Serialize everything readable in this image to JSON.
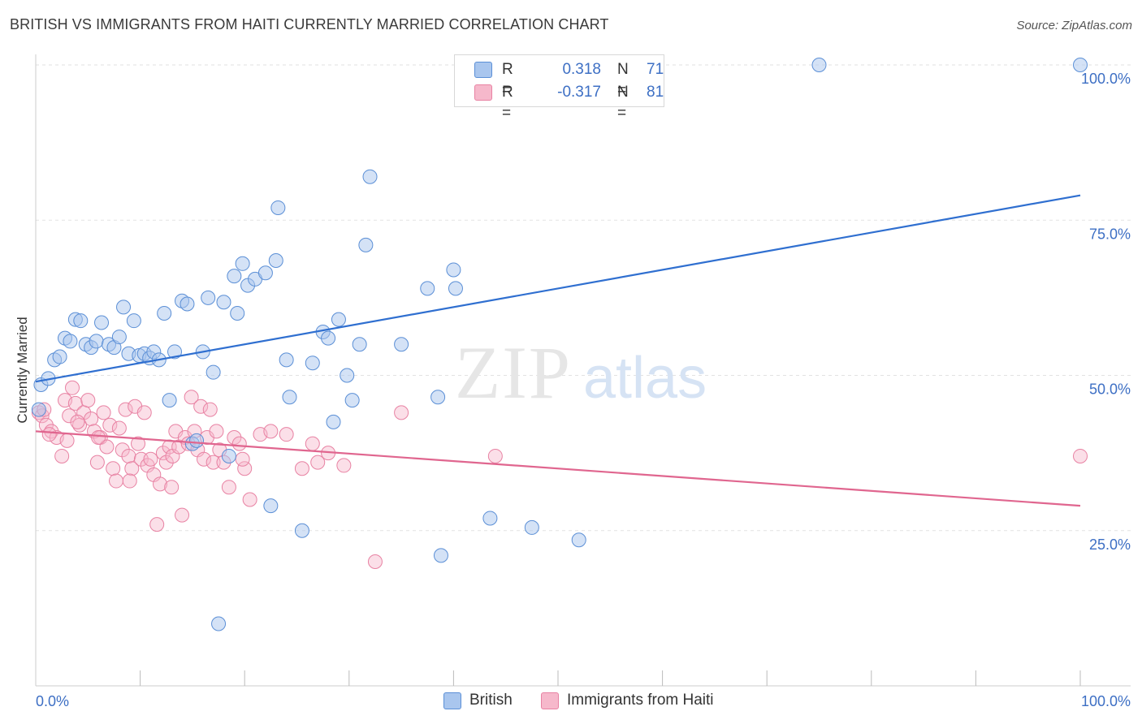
{
  "header": {
    "title": "BRITISH VS IMMIGRANTS FROM HAITI CURRENTLY MARRIED CORRELATION CHART",
    "source": "Source: ZipAtlas.com"
  },
  "colors": {
    "british_fill": "#a9c6ee",
    "british_stroke": "#5b8fd6",
    "british_line": "#2f6fd0",
    "haiti_fill": "#f6b8cb",
    "haiti_stroke": "#e882a3",
    "haiti_line": "#e0668f",
    "tick_text": "#3d6fc4",
    "grid": "#e2e2e2"
  },
  "legend": {
    "rows": [
      {
        "r_label": "R =",
        "r_value": "0.318",
        "n_label": "N =",
        "n_value": "71"
      },
      {
        "r_label": "R =",
        "r_value": "-0.317",
        "n_label": "N =",
        "n_value": "81"
      }
    ]
  },
  "bottom_legend": {
    "british": "British",
    "haiti": "Immigrants from Haiti"
  },
  "watermark": {
    "zip": "ZIP",
    "atlas": "atlas"
  },
  "chart_data": {
    "type": "scatter",
    "title": "BRITISH VS IMMIGRANTS FROM HAITI CURRENTLY MARRIED CORRELATION CHART",
    "xlabel": "",
    "ylabel": "Currently Married",
    "xlim": [
      0,
      100
    ],
    "ylim": [
      0,
      100
    ],
    "x_tick_labels": [
      "0.0%",
      "100.0%"
    ],
    "y_tick_labels": [
      "25.0%",
      "50.0%",
      "75.0%",
      "100.0%"
    ],
    "y_ticks": [
      25,
      50,
      75,
      100
    ],
    "grid": true,
    "series": [
      {
        "name": "British",
        "r": 0.318,
        "n": 71,
        "trend": {
          "x": [
            0,
            100
          ],
          "y": [
            49.0,
            79.0
          ]
        },
        "points": [
          [
            0.3,
            44.5
          ],
          [
            0.5,
            48.5
          ],
          [
            1.2,
            49.5
          ],
          [
            1.8,
            52.5
          ],
          [
            2.3,
            53.0
          ],
          [
            2.8,
            56.0
          ],
          [
            3.3,
            55.5
          ],
          [
            3.8,
            59.0
          ],
          [
            4.3,
            58.8
          ],
          [
            4.8,
            55.0
          ],
          [
            5.3,
            54.5
          ],
          [
            5.8,
            55.5
          ],
          [
            6.3,
            58.5
          ],
          [
            7.0,
            55.0
          ],
          [
            7.5,
            54.5
          ],
          [
            8.0,
            56.2
          ],
          [
            8.4,
            61.0
          ],
          [
            8.9,
            53.5
          ],
          [
            9.4,
            58.8
          ],
          [
            9.9,
            53.2
          ],
          [
            10.4,
            53.5
          ],
          [
            10.9,
            52.8
          ],
          [
            11.3,
            53.8
          ],
          [
            11.8,
            52.5
          ],
          [
            12.3,
            60.0
          ],
          [
            12.8,
            46.0
          ],
          [
            13.3,
            53.8
          ],
          [
            14.0,
            62.0
          ],
          [
            14.5,
            61.5
          ],
          [
            15.0,
            39.0
          ],
          [
            15.4,
            39.5
          ],
          [
            16.0,
            53.8
          ],
          [
            16.5,
            62.5
          ],
          [
            17.0,
            50.5
          ],
          [
            17.5,
            10.0
          ],
          [
            18.0,
            61.8
          ],
          [
            18.5,
            37.0
          ],
          [
            19.0,
            66.0
          ],
          [
            19.3,
            60.0
          ],
          [
            19.8,
            68.0
          ],
          [
            20.3,
            64.5
          ],
          [
            21.0,
            65.5
          ],
          [
            22.0,
            66.5
          ],
          [
            22.5,
            29.0
          ],
          [
            23.0,
            68.5
          ],
          [
            23.2,
            77.0
          ],
          [
            24.0,
            52.5
          ],
          [
            24.3,
            46.5
          ],
          [
            25.5,
            25.0
          ],
          [
            26.5,
            52.0
          ],
          [
            27.5,
            57.0
          ],
          [
            28.0,
            56.0
          ],
          [
            28.5,
            42.5
          ],
          [
            29.0,
            59.0
          ],
          [
            29.8,
            50.0
          ],
          [
            30.3,
            46.0
          ],
          [
            31.0,
            55.0
          ],
          [
            31.6,
            71.0
          ],
          [
            32.0,
            82.0
          ],
          [
            35.0,
            55.0
          ],
          [
            37.5,
            64.0
          ],
          [
            38.5,
            46.5
          ],
          [
            38.8,
            21.0
          ],
          [
            40.0,
            67.0
          ],
          [
            40.2,
            64.0
          ],
          [
            43.5,
            27.0
          ],
          [
            47.5,
            25.5
          ],
          [
            49.5,
            99.0
          ],
          [
            52.0,
            23.5
          ],
          [
            75.0,
            100.0
          ],
          [
            100.0,
            100.0
          ]
        ]
      },
      {
        "name": "Immigrants from Haiti",
        "r": -0.317,
        "n": 81,
        "trend": {
          "x": [
            0,
            100
          ],
          "y": [
            41.0,
            29.0
          ]
        },
        "points": [
          [
            0.3,
            44.0
          ],
          [
            0.6,
            43.5
          ],
          [
            1.0,
            42.0
          ],
          [
            1.5,
            41.0
          ],
          [
            2.0,
            40.0
          ],
          [
            2.5,
            37.0
          ],
          [
            2.8,
            46.0
          ],
          [
            3.2,
            43.5
          ],
          [
            3.5,
            48.0
          ],
          [
            3.8,
            45.5
          ],
          [
            4.2,
            42.0
          ],
          [
            4.6,
            44.0
          ],
          [
            5.0,
            46.0
          ],
          [
            5.3,
            43.0
          ],
          [
            5.6,
            41.0
          ],
          [
            5.9,
            36.0
          ],
          [
            6.2,
            40.0
          ],
          [
            6.5,
            44.0
          ],
          [
            6.8,
            38.5
          ],
          [
            7.1,
            42.0
          ],
          [
            7.4,
            35.0
          ],
          [
            7.7,
            33.0
          ],
          [
            8.0,
            41.5
          ],
          [
            8.3,
            38.0
          ],
          [
            8.6,
            44.5
          ],
          [
            8.9,
            37.0
          ],
          [
            9.2,
            35.0
          ],
          [
            9.5,
            45.0
          ],
          [
            9.8,
            39.0
          ],
          [
            10.1,
            36.5
          ],
          [
            10.4,
            44.0
          ],
          [
            10.7,
            35.5
          ],
          [
            11.0,
            36.5
          ],
          [
            11.3,
            34.0
          ],
          [
            11.6,
            26.0
          ],
          [
            11.9,
            32.5
          ],
          [
            12.2,
            37.5
          ],
          [
            12.5,
            36.0
          ],
          [
            12.8,
            38.5
          ],
          [
            13.1,
            37.0
          ],
          [
            13.4,
            41.0
          ],
          [
            13.7,
            38.5
          ],
          [
            14.0,
            27.5
          ],
          [
            14.3,
            40.0
          ],
          [
            14.6,
            39.0
          ],
          [
            14.9,
            46.5
          ],
          [
            15.2,
            41.0
          ],
          [
            15.5,
            38.0
          ],
          [
            15.8,
            45.0
          ],
          [
            16.1,
            36.5
          ],
          [
            16.4,
            40.0
          ],
          [
            16.7,
            44.5
          ],
          [
            17.0,
            36.0
          ],
          [
            17.3,
            41.0
          ],
          [
            17.6,
            38.0
          ],
          [
            18.0,
            36.0
          ],
          [
            18.5,
            32.0
          ],
          [
            19.0,
            40.0
          ],
          [
            19.5,
            39.0
          ],
          [
            20.0,
            35.0
          ],
          [
            20.5,
            30.0
          ],
          [
            21.5,
            40.5
          ],
          [
            22.5,
            41.0
          ],
          [
            24.0,
            40.5
          ],
          [
            25.5,
            35.0
          ],
          [
            26.5,
            39.0
          ],
          [
            27.0,
            36.0
          ],
          [
            28.0,
            37.5
          ],
          [
            29.5,
            35.5
          ],
          [
            32.5,
            20.0
          ],
          [
            35.0,
            44.0
          ],
          [
            44.0,
            37.0
          ],
          [
            100.0,
            37.0
          ],
          [
            0.8,
            44.5
          ],
          [
            1.3,
            40.5
          ],
          [
            3.0,
            39.5
          ],
          [
            4.0,
            42.5
          ],
          [
            6.0,
            40.0
          ],
          [
            9.0,
            33.0
          ],
          [
            13.0,
            32.0
          ],
          [
            19.8,
            36.5
          ]
        ]
      }
    ]
  }
}
